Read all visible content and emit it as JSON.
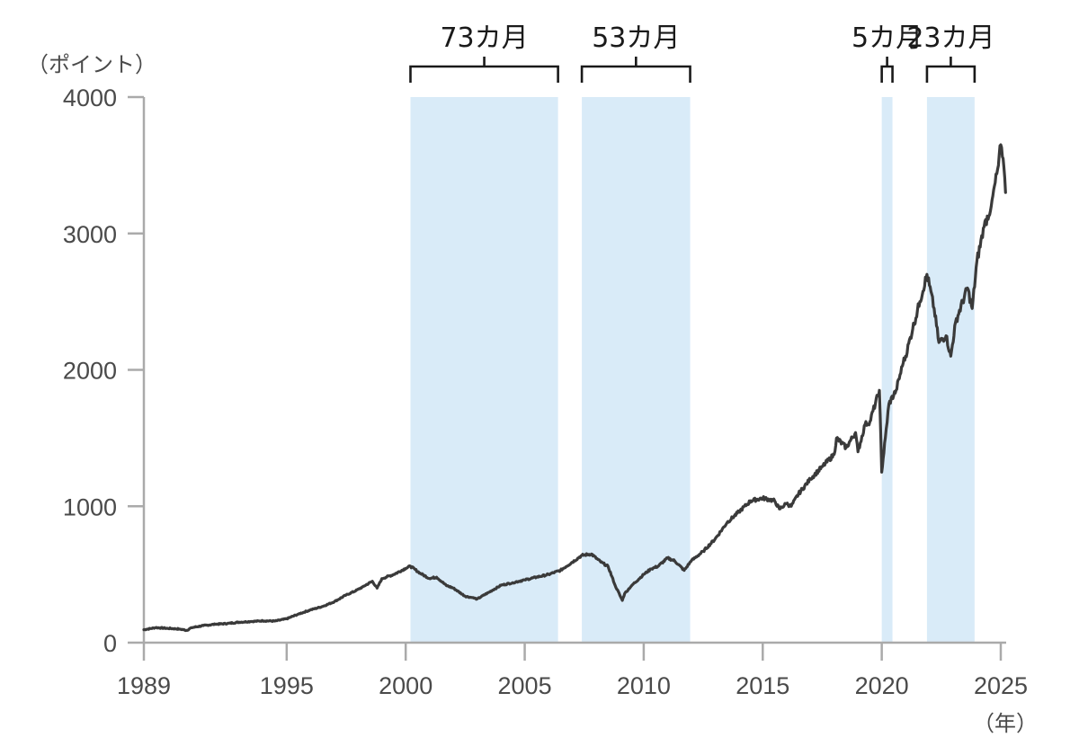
{
  "chart": {
    "y_unit_label": "（ポイント）",
    "x_unit_label": "（年）",
    "colors": {
      "line": "#3a3a3a",
      "shade": "#d9ebf8",
      "axis": "#aaaaaa",
      "bracket": "#1a1a1a",
      "tick_text": "#4a4a4a"
    },
    "y_ticks": [
      "0",
      "1000",
      "2000",
      "3000",
      "4000"
    ],
    "x_ticks": [
      "1989",
      "1995",
      "2000",
      "2005",
      "2010",
      "2015",
      "2020",
      "2025"
    ],
    "periods": [
      {
        "label": "73カ月",
        "start": 2000.2,
        "end": 2006.4
      },
      {
        "label": "53カ月",
        "start": 2007.4,
        "end": 2011.95
      },
      {
        "label": "5カ月",
        "start": 2020.0,
        "end": 2020.45
      },
      {
        "label": "23カ月",
        "start": 2021.9,
        "end": 2023.9
      }
    ]
  },
  "chart_data": {
    "type": "line",
    "title": "",
    "xlabel": "（年）",
    "ylabel": "（ポイント）",
    "xlim": [
      1989,
      2025.2
    ],
    "ylim": [
      0,
      4000
    ],
    "x_tick_labels": [
      "1989",
      "1995",
      "2000",
      "2005",
      "2010",
      "2015",
      "2020",
      "2025"
    ],
    "y_tick_labels": [
      "0",
      "1000",
      "2000",
      "3000",
      "4000"
    ],
    "grid": false,
    "legend": null,
    "shaded_periods": [
      {
        "label": "73カ月",
        "start": 2000.2,
        "end": 2006.4
      },
      {
        "label": "53カ月",
        "start": 2007.4,
        "end": 2011.95
      },
      {
        "label": "5カ月",
        "start": 2020.0,
        "end": 2020.45
      },
      {
        "label": "23カ月",
        "start": 2021.9,
        "end": 2023.9
      }
    ],
    "series": [
      {
        "name": "index",
        "x": [
          1989.0,
          1989.5,
          1990.0,
          1990.5,
          1990.8,
          1991.0,
          1991.5,
          1992.0,
          1992.5,
          1993.0,
          1993.5,
          1994.0,
          1994.5,
          1995.0,
          1995.5,
          1996.0,
          1996.5,
          1997.0,
          1997.5,
          1997.9,
          1998.2,
          1998.6,
          1998.8,
          1999.0,
          1999.5,
          2000.0,
          2000.2,
          2000.6,
          2001.0,
          2001.3,
          2001.7,
          2002.0,
          2002.5,
          2002.8,
          2003.0,
          2003.5,
          2004.0,
          2004.5,
          2005.0,
          2005.5,
          2006.0,
          2006.5,
          2007.0,
          2007.4,
          2007.8,
          2008.2,
          2008.5,
          2008.8,
          2009.1,
          2009.2,
          2009.5,
          2010.0,
          2010.3,
          2010.6,
          2011.0,
          2011.3,
          2011.7,
          2012.0,
          2012.5,
          2013.0,
          2013.5,
          2014.0,
          2014.5,
          2015.0,
          2015.5,
          2015.7,
          2016.0,
          2016.2,
          2016.5,
          2017.0,
          2017.5,
          2018.0,
          2018.1,
          2018.5,
          2018.9,
          2019.0,
          2019.3,
          2019.5,
          2019.9,
          2020.0,
          2020.15,
          2020.3,
          2020.6,
          2020.9,
          2021.0,
          2021.3,
          2021.6,
          2021.9,
          2022.0,
          2022.2,
          2022.4,
          2022.7,
          2022.9,
          2023.1,
          2023.4,
          2023.6,
          2023.8,
          2024.0,
          2024.3,
          2024.6,
          2024.9,
          2025.0,
          2025.1,
          2025.2
        ],
        "values": [
          95,
          110,
          105,
          100,
          90,
          110,
          125,
          135,
          140,
          150,
          155,
          160,
          158,
          175,
          210,
          240,
          265,
          300,
          350,
          380,
          410,
          450,
          400,
          470,
          500,
          545,
          560,
          510,
          470,
          480,
          420,
          400,
          340,
          330,
          320,
          370,
          420,
          440,
          460,
          480,
          500,
          530,
          590,
          640,
          650,
          590,
          560,
          420,
          310,
          360,
          420,
          500,
          540,
          560,
          620,
          600,
          530,
          600,
          670,
          760,
          880,
          960,
          1040,
          1060,
          1040,
          980,
          1020,
          1000,
          1090,
          1200,
          1290,
          1380,
          1500,
          1430,
          1540,
          1400,
          1600,
          1620,
          1850,
          1250,
          1500,
          1750,
          1850,
          2050,
          2100,
          2300,
          2500,
          2700,
          2620,
          2450,
          2200,
          2250,
          2100,
          2350,
          2500,
          2600,
          2450,
          2800,
          3050,
          3200,
          3500,
          3650,
          3550,
          3300
        ]
      }
    ]
  }
}
